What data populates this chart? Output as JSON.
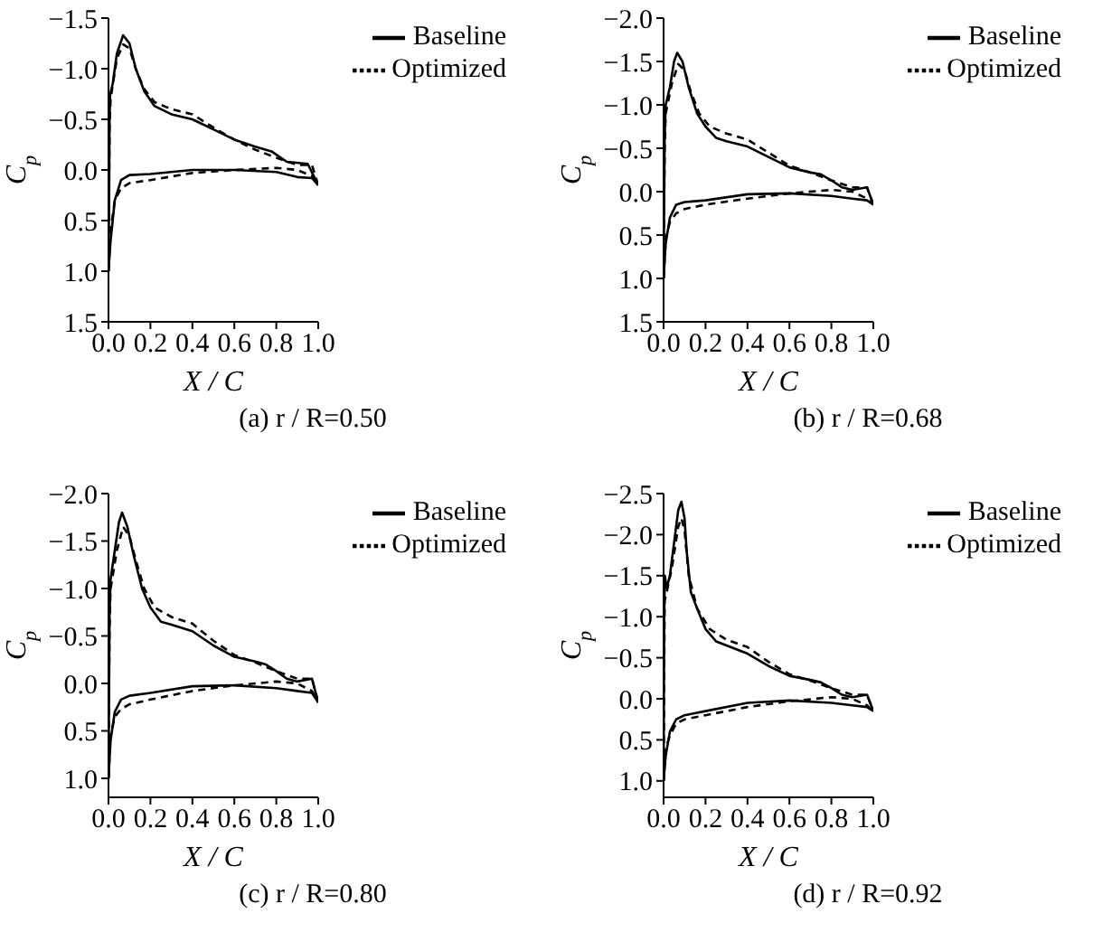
{
  "chart_data": [
    {
      "type": "line",
      "title": "(a) r / R=0.50",
      "xlabel": "X / C",
      "ylabel": "C$_{p}$",
      "legend": "top right",
      "xlim": [
        0,
        1
      ],
      "ylim": [
        1.5,
        -1.5
      ],
      "xticks": [
        {
          "value": 0,
          "label": "0.0"
        },
        {
          "value": 0.2,
          "label": "0.2"
        },
        {
          "value": 0.4,
          "label": "0.4"
        },
        {
          "value": 0.6,
          "label": "0.6"
        },
        {
          "value": 0.8,
          "label": "0.8"
        },
        {
          "value": 1,
          "label": "1.0"
        }
      ],
      "yticks": [
        {
          "value": -1.5,
          "label": "−1.5"
        },
        {
          "value": -1,
          "label": "−1.0"
        },
        {
          "value": -0.5,
          "label": "−0.5"
        },
        {
          "value": 0,
          "label": "0.0"
        },
        {
          "value": 0.5,
          "label": "0.5"
        },
        {
          "value": 1,
          "label": "1.0"
        },
        {
          "value": 1.5,
          "label": "1.5"
        }
      ],
      "series": [
        {
          "name": "Baseline",
          "color": "#000000",
          "line_style": "solid",
          "x": [
            0,
            0.003,
            0.005,
            0.008,
            0.02,
            0.04,
            0.07,
            0.1,
            0.13,
            0.17,
            0.22,
            0.3,
            0.4,
            0.5,
            0.6,
            0.7,
            0.78,
            0.85,
            0.95,
            1.0
          ],
          "values": [
            1.0,
            0.3,
            -0.5,
            -0.75,
            -0.85,
            -1.15,
            -1.33,
            -1.25,
            -1.0,
            -0.78,
            -0.63,
            -0.55,
            -0.5,
            -0.4,
            -0.3,
            -0.23,
            -0.18,
            -0.08,
            -0.06,
            0.15
          ]
        },
        {
          "name": "Optimized",
          "color": "#000000",
          "line_style": "dashed",
          "x": [
            0,
            0.005,
            0.01,
            0.04,
            0.07,
            0.1,
            0.13,
            0.17,
            0.22,
            0.3,
            0.4,
            0.5,
            0.6,
            0.7,
            0.8,
            0.9,
            0.97,
            1.0
          ],
          "values": [
            1.0,
            -0.4,
            -0.7,
            -1.1,
            -1.24,
            -1.2,
            -1.0,
            -0.8,
            -0.67,
            -0.6,
            -0.55,
            -0.42,
            -0.3,
            -0.2,
            -0.12,
            -0.05,
            -0.05,
            0.15
          ]
        },
        {
          "color": "#000000",
          "line_style": "solid",
          "x": [
            0,
            0.01,
            0.03,
            0.06,
            0.1,
            0.2,
            0.4,
            0.6,
            0.8,
            0.9,
            0.97,
            1.0
          ],
          "values": [
            1.0,
            0.7,
            0.3,
            0.1,
            0.05,
            0.04,
            0.0,
            0.0,
            0.02,
            0.07,
            0.08,
            0.15
          ]
        },
        {
          "color": "#000000",
          "line_style": "dashed",
          "x": [
            0,
            0.01,
            0.03,
            0.06,
            0.1,
            0.2,
            0.4,
            0.6,
            0.8,
            0.9,
            0.97,
            1.0
          ],
          "values": [
            1.0,
            0.6,
            0.3,
            0.18,
            0.13,
            0.1,
            0.03,
            0.0,
            -0.02,
            0.0,
            0.06,
            0.15
          ]
        }
      ]
    },
    {
      "type": "line",
      "title": "(b) r / R=0.68",
      "xlabel": "X / C",
      "ylabel": "C$_{p}$",
      "legend": "top right",
      "xlim": [
        0,
        1
      ],
      "ylim": [
        1.5,
        -2.0
      ],
      "xticks": [
        {
          "value": 0,
          "label": "0.0"
        },
        {
          "value": 0.2,
          "label": "0.2"
        },
        {
          "value": 0.4,
          "label": "0.4"
        },
        {
          "value": 0.6,
          "label": "0.6"
        },
        {
          "value": 0.8,
          "label": "0.8"
        },
        {
          "value": 1,
          "label": "1.0"
        }
      ],
      "yticks": [
        {
          "value": -2,
          "label": "−2.0"
        },
        {
          "value": -1.5,
          "label": "−1.5"
        },
        {
          "value": -1,
          "label": "−1.0"
        },
        {
          "value": -0.5,
          "label": "−0.5"
        },
        {
          "value": 0,
          "label": "0.0"
        },
        {
          "value": 0.5,
          "label": "0.5"
        },
        {
          "value": 1,
          "label": "1.0"
        },
        {
          "value": 1.5,
          "label": "1.5"
        }
      ],
      "series": [
        {
          "name": "Baseline",
          "color": "#000000",
          "line_style": "solid",
          "x": [
            0,
            0.005,
            0.01,
            0.03,
            0.05,
            0.065,
            0.09,
            0.12,
            0.16,
            0.2,
            0.25,
            0.3,
            0.4,
            0.5,
            0.6,
            0.7,
            0.75,
            0.8,
            0.85,
            0.9,
            0.97,
            1.0
          ],
          "values": [
            1.0,
            -0.6,
            -1.0,
            -1.2,
            -1.5,
            -1.6,
            -1.5,
            -1.2,
            -0.9,
            -0.75,
            -0.62,
            -0.58,
            -0.52,
            -0.4,
            -0.28,
            -0.22,
            -0.2,
            -0.13,
            -0.05,
            -0.02,
            -0.05,
            0.15
          ]
        },
        {
          "name": "Optimized",
          "color": "#000000",
          "line_style": "dashed",
          "x": [
            0,
            0.005,
            0.01,
            0.04,
            0.07,
            0.1,
            0.13,
            0.17,
            0.22,
            0.3,
            0.4,
            0.5,
            0.6,
            0.7,
            0.8,
            0.9,
            0.97,
            1.0
          ],
          "values": [
            1.0,
            -0.5,
            -0.9,
            -1.25,
            -1.47,
            -1.4,
            -1.15,
            -0.9,
            -0.75,
            -0.67,
            -0.6,
            -0.45,
            -0.3,
            -0.22,
            -0.13,
            -0.05,
            -0.05,
            0.15
          ]
        },
        {
          "color": "#000000",
          "line_style": "solid",
          "x": [
            0,
            0.01,
            0.03,
            0.06,
            0.1,
            0.2,
            0.4,
            0.6,
            0.8,
            0.9,
            0.97,
            1.0
          ],
          "values": [
            1.0,
            0.6,
            0.3,
            0.15,
            0.12,
            0.1,
            0.03,
            0.02,
            0.05,
            0.08,
            0.1,
            0.15
          ]
        },
        {
          "color": "#000000",
          "line_style": "dashed",
          "x": [
            0,
            0.01,
            0.03,
            0.06,
            0.1,
            0.2,
            0.4,
            0.6,
            0.8,
            0.9,
            0.97,
            1.0
          ],
          "values": [
            1.0,
            0.55,
            0.35,
            0.25,
            0.2,
            0.15,
            0.08,
            0.02,
            -0.02,
            0.0,
            0.08,
            0.15
          ]
        }
      ]
    },
    {
      "type": "line",
      "title": "(c) r / R=0.80",
      "xlabel": "X / C",
      "ylabel": "C$_{p}$",
      "legend": "top right",
      "xlim": [
        0,
        1
      ],
      "ylim": [
        1.2,
        -2.0
      ],
      "xticks": [
        {
          "value": 0,
          "label": "0.0"
        },
        {
          "value": 0.2,
          "label": "0.2"
        },
        {
          "value": 0.4,
          "label": "0.4"
        },
        {
          "value": 0.6,
          "label": "0.6"
        },
        {
          "value": 0.8,
          "label": "0.8"
        },
        {
          "value": 1,
          "label": "1.0"
        }
      ],
      "yticks": [
        {
          "value": -2,
          "label": "−2.0"
        },
        {
          "value": -1.5,
          "label": "−1.5"
        },
        {
          "value": -1,
          "label": "−1.0"
        },
        {
          "value": -0.5,
          "label": "−0.5"
        },
        {
          "value": 0,
          "label": "0.0"
        },
        {
          "value": 0.5,
          "label": "0.5"
        },
        {
          "value": 1,
          "label": "1.0"
        }
      ],
      "series": [
        {
          "name": "Baseline",
          "color": "#000000",
          "line_style": "solid",
          "x": [
            0,
            0.005,
            0.01,
            0.03,
            0.05,
            0.065,
            0.09,
            0.12,
            0.16,
            0.2,
            0.25,
            0.3,
            0.4,
            0.5,
            0.6,
            0.7,
            0.75,
            0.8,
            0.85,
            0.9,
            0.97,
            1.0
          ],
          "values": [
            1.0,
            -0.7,
            -1.1,
            -1.4,
            -1.7,
            -1.8,
            -1.65,
            -1.35,
            -1.0,
            -0.8,
            -0.65,
            -0.62,
            -0.55,
            -0.4,
            -0.28,
            -0.23,
            -0.2,
            -0.13,
            -0.05,
            -0.02,
            -0.05,
            0.2
          ]
        },
        {
          "name": "Optimized",
          "color": "#000000",
          "line_style": "dashed",
          "x": [
            0,
            0.005,
            0.01,
            0.04,
            0.07,
            0.1,
            0.13,
            0.17,
            0.22,
            0.3,
            0.4,
            0.5,
            0.6,
            0.7,
            0.8,
            0.9,
            0.97,
            1.0
          ],
          "values": [
            1.0,
            -0.6,
            -1.0,
            -1.4,
            -1.65,
            -1.55,
            -1.3,
            -1.0,
            -0.8,
            -0.7,
            -0.63,
            -0.45,
            -0.3,
            -0.22,
            -0.13,
            -0.05,
            -0.05,
            0.2
          ]
        },
        {
          "color": "#000000",
          "line_style": "solid",
          "x": [
            0,
            0.01,
            0.03,
            0.06,
            0.1,
            0.2,
            0.4,
            0.6,
            0.8,
            0.9,
            0.97,
            1.0
          ],
          "values": [
            1.0,
            0.6,
            0.3,
            0.17,
            0.13,
            0.1,
            0.03,
            0.02,
            0.05,
            0.08,
            0.1,
            0.2
          ]
        },
        {
          "color": "#000000",
          "line_style": "dashed",
          "x": [
            0,
            0.01,
            0.03,
            0.06,
            0.1,
            0.2,
            0.4,
            0.6,
            0.8,
            0.9,
            0.97,
            1.0
          ],
          "values": [
            1.0,
            0.55,
            0.35,
            0.27,
            0.22,
            0.17,
            0.08,
            0.02,
            -0.02,
            0.0,
            0.08,
            0.2
          ]
        }
      ]
    },
    {
      "type": "line",
      "title": "(d) r / R=0.92",
      "xlabel": "X / C",
      "ylabel": "C$_{p}$",
      "legend": "top right",
      "xlim": [
        0,
        1
      ],
      "ylim": [
        1.2,
        -2.5
      ],
      "xticks": [
        {
          "value": 0,
          "label": "0.0"
        },
        {
          "value": 0.2,
          "label": "0.2"
        },
        {
          "value": 0.4,
          "label": "0.4"
        },
        {
          "value": 0.6,
          "label": "0.6"
        },
        {
          "value": 0.8,
          "label": "0.8"
        },
        {
          "value": 1,
          "label": "1.0"
        }
      ],
      "yticks": [
        {
          "value": -2.5,
          "label": "−2.5"
        },
        {
          "value": -2,
          "label": "−2.0"
        },
        {
          "value": -1.5,
          "label": "−1.5"
        },
        {
          "value": -1,
          "label": "−1.0"
        },
        {
          "value": -0.5,
          "label": "−0.5"
        },
        {
          "value": 0,
          "label": "0.0"
        },
        {
          "value": 0.5,
          "label": "0.5"
        },
        {
          "value": 1,
          "label": "1.0"
        }
      ],
      "series": [
        {
          "name": "Baseline",
          "color": "#000000",
          "line_style": "solid",
          "x": [
            0,
            0.003,
            0.006,
            0.015,
            0.03,
            0.05,
            0.07,
            0.085,
            0.1,
            0.11,
            0.13,
            0.16,
            0.2,
            0.25,
            0.3,
            0.4,
            0.5,
            0.6,
            0.7,
            0.75,
            0.8,
            0.85,
            0.9,
            0.97,
            1.0
          ],
          "values": [
            1.0,
            -1.0,
            -1.5,
            -1.35,
            -1.5,
            -1.9,
            -2.3,
            -2.4,
            -2.2,
            -1.8,
            -1.3,
            -1.1,
            -0.85,
            -0.7,
            -0.65,
            -0.55,
            -0.4,
            -0.28,
            -0.23,
            -0.2,
            -0.13,
            -0.05,
            -0.02,
            -0.05,
            0.15
          ]
        },
        {
          "name": "Optimized",
          "color": "#000000",
          "line_style": "dashed",
          "x": [
            0,
            0.005,
            0.015,
            0.04,
            0.07,
            0.085,
            0.1,
            0.12,
            0.16,
            0.22,
            0.3,
            0.4,
            0.5,
            0.6,
            0.7,
            0.8,
            0.9,
            0.97,
            1.0
          ],
          "values": [
            1.0,
            -1.2,
            -1.3,
            -1.6,
            -2.1,
            -2.2,
            -2.05,
            -1.5,
            -1.1,
            -0.85,
            -0.72,
            -0.63,
            -0.45,
            -0.3,
            -0.22,
            -0.13,
            -0.05,
            -0.05,
            0.15
          ]
        },
        {
          "color": "#000000",
          "line_style": "solid",
          "x": [
            0,
            0.01,
            0.03,
            0.06,
            0.1,
            0.2,
            0.4,
            0.6,
            0.8,
            0.9,
            0.97,
            1.0
          ],
          "values": [
            1.0,
            0.7,
            0.4,
            0.25,
            0.2,
            0.15,
            0.05,
            0.02,
            0.05,
            0.08,
            0.1,
            0.15
          ]
        },
        {
          "color": "#000000",
          "line_style": "dashed",
          "x": [
            0,
            0.01,
            0.03,
            0.06,
            0.1,
            0.2,
            0.4,
            0.6,
            0.8,
            0.9,
            0.97,
            1.0
          ],
          "values": [
            1.0,
            0.6,
            0.45,
            0.3,
            0.25,
            0.2,
            0.1,
            0.03,
            -0.02,
            0.0,
            0.08,
            0.15
          ]
        }
      ]
    }
  ]
}
